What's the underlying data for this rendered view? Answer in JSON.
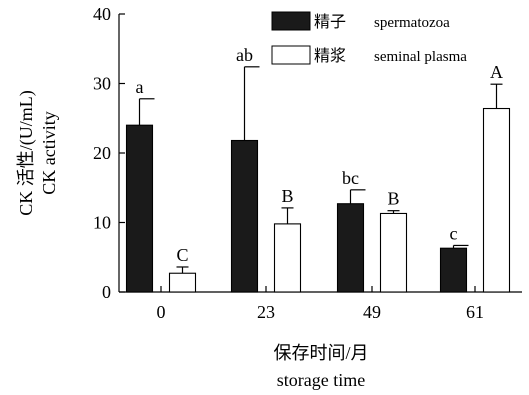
{
  "chart_data": {
    "type": "bar",
    "categories": [
      "0",
      "23",
      "49",
      "61"
    ],
    "series": [
      {
        "name_zh": "精子",
        "name_en": "spermatozoa",
        "color": "#1a1a1a",
        "values": [
          24.0,
          21.8,
          12.7,
          6.3
        ],
        "errors": [
          3.8,
          10.6,
          2.0,
          0.4
        ],
        "letters": [
          "a",
          "ab",
          "bc",
          "c"
        ]
      },
      {
        "name_zh": "精浆",
        "name_en": "seminal plasma",
        "color": "#ffffff",
        "values": [
          2.7,
          9.8,
          11.3,
          26.4
        ],
        "errors": [
          0.9,
          2.3,
          0.4,
          3.5
        ],
        "letters": [
          "C",
          "B",
          "B",
          "A"
        ]
      }
    ],
    "ylim": [
      0,
      40
    ],
    "yticks": [
      "0",
      "10",
      "20",
      "30",
      "40"
    ],
    "ylabel_line1": "CK 活性/(U/mL)",
    "ylabel_line2": "CK activity",
    "xlabel_line1": "保存时间/月",
    "xlabel_line2": "storage time",
    "legend_position": "top-right"
  }
}
